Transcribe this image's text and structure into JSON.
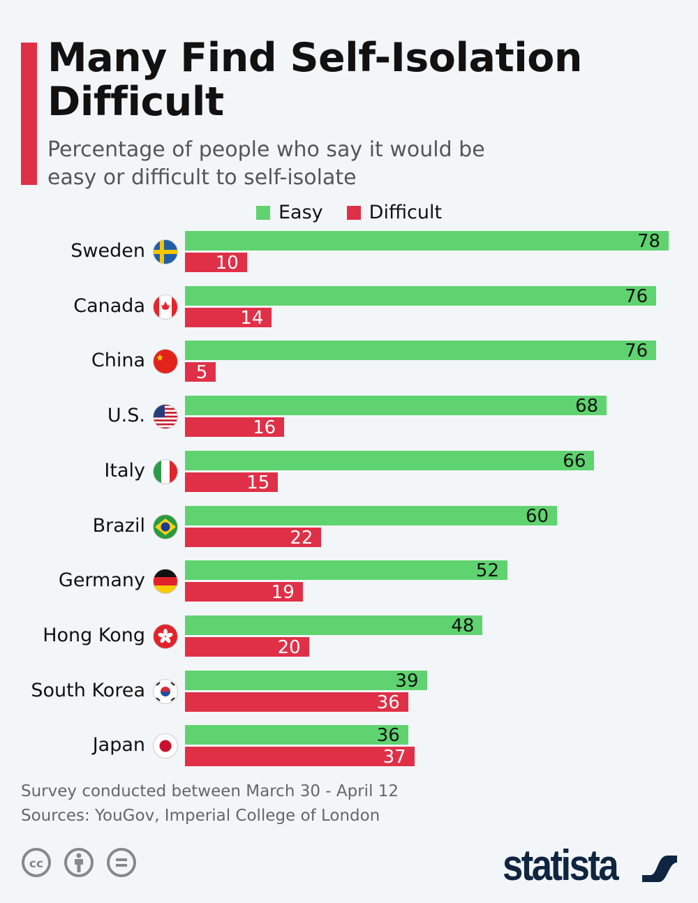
{
  "title": "Many Find Self-Isolation Difficult",
  "subtitle": "Percentage of people who say it would be easy or difficult to self-isolate",
  "colors": {
    "easy": "#5fd36f",
    "difficult": "#e03047",
    "accent": "#e03047"
  },
  "chart_data": {
    "type": "bar",
    "orientation": "horizontal",
    "categories": [
      "Sweden",
      "Canada",
      "China",
      "U.S.",
      "Italy",
      "Brazil",
      "Germany",
      "Hong Kong",
      "South Korea",
      "Japan"
    ],
    "series": [
      {
        "name": "Easy",
        "values": [
          78,
          76,
          76,
          68,
          66,
          60,
          52,
          48,
          39,
          36
        ]
      },
      {
        "name": "Difficult",
        "values": [
          10,
          14,
          5,
          16,
          15,
          22,
          19,
          20,
          36,
          37
        ]
      }
    ],
    "xlim": [
      0,
      78
    ],
    "grid": false,
    "legend": "top",
    "flags": [
      "sweden-flag",
      "canada-flag",
      "china-flag",
      "us-flag",
      "italy-flag",
      "brazil-flag",
      "germany-flag",
      "hong-kong-flag",
      "south-korea-flag",
      "japan-flag"
    ]
  },
  "footer": {
    "note": "Survey conducted between March 30 - April 12",
    "sources": "Sources: YouGov, Imperial College of London"
  },
  "logo": "statista",
  "license_icons": [
    "cc-icon",
    "attribution-icon",
    "no-derivatives-icon"
  ]
}
